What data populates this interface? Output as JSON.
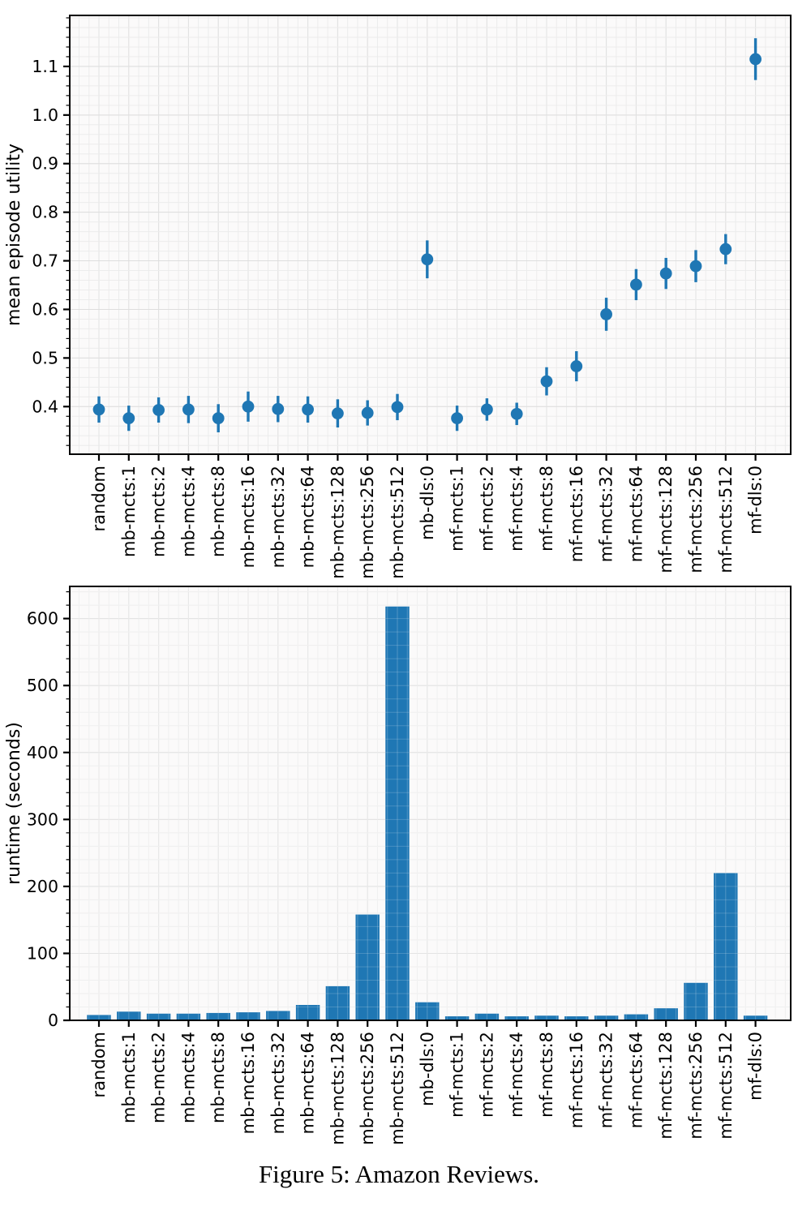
{
  "figure": {
    "caption": "Figure 5: Amazon Reviews."
  },
  "chart_data": [
    {
      "type": "scatter",
      "title": "",
      "xlabel": "",
      "ylabel": "mean episode utility",
      "categories": [
        "random",
        "mb-mcts:1",
        "mb-mcts:2",
        "mb-mcts:4",
        "mb-mcts:8",
        "mb-mcts:16",
        "mb-mcts:32",
        "mb-mcts:64",
        "mb-mcts:128",
        "mb-mcts:256",
        "mb-mcts:512",
        "mb-dls:0",
        "mf-mcts:1",
        "mf-mcts:2",
        "mf-mcts:4",
        "mf-mcts:8",
        "mf-mcts:16",
        "mf-mcts:32",
        "mf-mcts:64",
        "mf-mcts:128",
        "mf-mcts:256",
        "mf-mcts:512",
        "mf-dls:0"
      ],
      "values": [
        0.394,
        0.376,
        0.393,
        0.394,
        0.376,
        0.4,
        0.395,
        0.394,
        0.386,
        0.387,
        0.399,
        0.703,
        0.376,
        0.394,
        0.385,
        0.452,
        0.483,
        0.59,
        0.651,
        0.674,
        0.689,
        0.724,
        1.115
      ],
      "errors": [
        0.027,
        0.026,
        0.026,
        0.028,
        0.029,
        0.031,
        0.027,
        0.027,
        0.029,
        0.026,
        0.027,
        0.039,
        0.026,
        0.023,
        0.023,
        0.029,
        0.031,
        0.034,
        0.032,
        0.032,
        0.033,
        0.031,
        0.043
      ],
      "yticks": [
        "0.4",
        "0.5",
        "0.6",
        "0.7",
        "0.8",
        "0.9",
        "1.0",
        "1.1"
      ],
      "y_minor_step": 0.02,
      "ylim": [
        0.302,
        1.205
      ],
      "grid": "major+minor",
      "legend": "none",
      "marker_color": "#1f77b4"
    },
    {
      "type": "bar",
      "title": "",
      "xlabel": "",
      "ylabel": "runtime (seconds)",
      "categories": [
        "random",
        "mb-mcts:1",
        "mb-mcts:2",
        "mb-mcts:4",
        "mb-mcts:8",
        "mb-mcts:16",
        "mb-mcts:32",
        "mb-mcts:64",
        "mb-mcts:128",
        "mb-mcts:256",
        "mb-mcts:512",
        "mb-dls:0",
        "mf-mcts:1",
        "mf-mcts:2",
        "mf-mcts:4",
        "mf-mcts:8",
        "mf-mcts:16",
        "mf-mcts:32",
        "mf-mcts:64",
        "mf-mcts:128",
        "mf-mcts:256",
        "mf-mcts:512",
        "mf-dls:0"
      ],
      "values": [
        8,
        13,
        10,
        10,
        11,
        12,
        14,
        23,
        51,
        158,
        618,
        27,
        6,
        10,
        6,
        7,
        6,
        7,
        9,
        18,
        56,
        220,
        7
      ],
      "yticks": [
        "0",
        "100",
        "200",
        "300",
        "400",
        "500",
        "600"
      ],
      "y_minor_step": 20,
      "ylim": [
        0,
        648
      ],
      "grid": "major+minor",
      "legend": "none",
      "bar_color": "#1f77b4"
    }
  ]
}
